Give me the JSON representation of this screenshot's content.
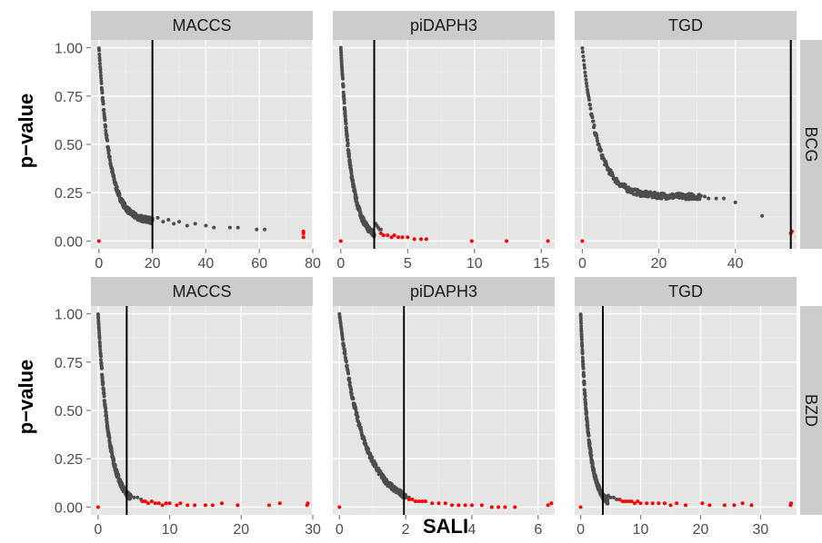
{
  "chart_data": {
    "type": "scatter",
    "xlabel": "SALI",
    "ylabel": "p−value",
    "columns": [
      "MACCS",
      "piDAPH3",
      "TGD"
    ],
    "rows": [
      "BCG",
      "BZD"
    ],
    "y_ticks": [
      "0.00",
      "0.25",
      "0.50",
      "0.75",
      "1.00"
    ],
    "ylim": [
      -0.04,
      1.04
    ],
    "grid": true,
    "colors": {
      "panel_bg": "#e5e5e5",
      "strip_bg": "#cccccc",
      "gridline": "#ffffff",
      "point": "#4d4d4d",
      "highlight": "#ff0000",
      "threshold": "#000000"
    },
    "panels": [
      {
        "row": "BCG",
        "column": "MACCS",
        "xlim": [
          -3,
          80
        ],
        "x_ticks": [
          0,
          20,
          40,
          60,
          80
        ],
        "threshold": 20,
        "decay": 4.0,
        "floor": 0.1,
        "x_max": 20,
        "sparse": [
          [
            20,
            0.11
          ],
          [
            22,
            0.12
          ],
          [
            24,
            0.1
          ],
          [
            26,
            0.11
          ],
          [
            28,
            0.09
          ],
          [
            30,
            0.1
          ],
          [
            33,
            0.08
          ],
          [
            36,
            0.09
          ],
          [
            40,
            0.08
          ],
          [
            43,
            0.07
          ],
          [
            49,
            0.07
          ],
          [
            52,
            0.07
          ],
          [
            59,
            0.06
          ],
          [
            62,
            0.06
          ]
        ],
        "red": [
          [
            0,
            0.0
          ],
          [
            76.5,
            0.02
          ],
          [
            76.5,
            0.04
          ],
          [
            76.5,
            0.05
          ]
        ]
      },
      {
        "row": "BCG",
        "column": "piDAPH3",
        "xlim": [
          -0.6,
          16
        ],
        "x_ticks": [
          0,
          5,
          10,
          15
        ],
        "threshold": 2.5,
        "decay": 0.75,
        "floor": 0.0,
        "x_max": 2.5,
        "sparse": [
          [
            2.6,
            0.09
          ],
          [
            2.7,
            0.08
          ],
          [
            2.8,
            0.07
          ],
          [
            2.9,
            0.06
          ],
          [
            3.0,
            0.06
          ]
        ],
        "red": [
          [
            0,
            0.0
          ],
          [
            3.0,
            0.04
          ],
          [
            3.2,
            0.03
          ],
          [
            3.5,
            0.03
          ],
          [
            3.8,
            0.02
          ],
          [
            4.0,
            0.03
          ],
          [
            4.3,
            0.02
          ],
          [
            4.6,
            0.02
          ],
          [
            5.0,
            0.02
          ],
          [
            5.5,
            0.01
          ],
          [
            6.0,
            0.01
          ],
          [
            6.4,
            0.01
          ],
          [
            9.8,
            0.0
          ],
          [
            12.4,
            0.0
          ],
          [
            15.5,
            0.0
          ]
        ]
      },
      {
        "row": "BCG",
        "column": "TGD",
        "xlim": [
          -2,
          56
        ],
        "x_ticks": [
          0,
          20,
          40
        ],
        "threshold": 54.5,
        "decay": 4.0,
        "floor": 0.23,
        "x_max": 31,
        "sparse": [
          [
            32,
            0.23
          ],
          [
            33,
            0.22
          ],
          [
            35,
            0.22
          ],
          [
            37,
            0.22
          ],
          [
            40,
            0.2
          ],
          [
            47,
            0.13
          ]
        ],
        "red": [
          [
            0,
            0.0
          ],
          [
            54.5,
            0.04
          ],
          [
            54.8,
            0.05
          ]
        ]
      },
      {
        "row": "BZD",
        "column": "MACCS",
        "xlim": [
          -1,
          30
        ],
        "x_ticks": [
          0,
          10,
          20,
          30
        ],
        "threshold": 4,
        "decay": 1.5,
        "floor": 0.0,
        "x_max": 4.5,
        "sparse": [
          [
            4.6,
            0.06
          ],
          [
            5.0,
            0.05
          ],
          [
            5.5,
            0.05
          ],
          [
            6.0,
            0.04
          ]
        ],
        "red": [
          [
            0,
            0.0
          ],
          [
            6.2,
            0.03
          ],
          [
            6.6,
            0.03
          ],
          [
            7.0,
            0.02
          ],
          [
            7.5,
            0.03
          ],
          [
            8.0,
            0.02
          ],
          [
            8.5,
            0.02
          ],
          [
            9.0,
            0.01
          ],
          [
            9.5,
            0.02
          ],
          [
            10.0,
            0.02
          ],
          [
            11.0,
            0.01
          ],
          [
            11.5,
            0.02
          ],
          [
            12.5,
            0.01
          ],
          [
            13.5,
            0.01
          ],
          [
            15.0,
            0.01
          ],
          [
            16.0,
            0.01
          ],
          [
            17.3,
            0.02
          ],
          [
            19.5,
            0.01
          ],
          [
            23.9,
            0.01
          ],
          [
            25.4,
            0.02
          ],
          [
            29.2,
            0.01
          ],
          [
            29.3,
            0.02
          ]
        ]
      },
      {
        "row": "BZD",
        "column": "piDAPH3",
        "xlim": [
          -0.2,
          6.5
        ],
        "x_ticks": [
          0,
          2,
          4,
          6
        ],
        "threshold": 1.95,
        "decay": 0.7,
        "floor": 0.0,
        "x_max": 2.0,
        "sparse": [
          [
            2.0,
            0.06
          ],
          [
            2.1,
            0.05
          ]
        ],
        "red": [
          [
            0,
            0.0
          ],
          [
            2.1,
            0.04
          ],
          [
            2.2,
            0.04
          ],
          [
            2.3,
            0.03
          ],
          [
            2.4,
            0.03
          ],
          [
            2.5,
            0.03
          ],
          [
            2.6,
            0.03
          ],
          [
            2.8,
            0.02
          ],
          [
            3.0,
            0.02
          ],
          [
            3.2,
            0.02
          ],
          [
            3.4,
            0.01
          ],
          [
            3.6,
            0.01
          ],
          [
            3.8,
            0.01
          ],
          [
            4.0,
            0.01
          ],
          [
            4.3,
            0.01
          ],
          [
            4.6,
            0.0
          ],
          [
            4.8,
            0.0
          ],
          [
            5.0,
            0.0
          ],
          [
            5.3,
            0.0
          ],
          [
            6.3,
            0.01
          ],
          [
            6.4,
            0.02
          ]
        ]
      },
      {
        "row": "BZD",
        "column": "TGD",
        "xlim": [
          -1,
          36
        ],
        "x_ticks": [
          0,
          10,
          20,
          30
        ],
        "threshold": 3.7,
        "decay": 1.3,
        "floor": 0.0,
        "x_max": 4.5,
        "sparse": [
          [
            4.6,
            0.06
          ],
          [
            5.0,
            0.05
          ],
          [
            5.5,
            0.05
          ],
          [
            6.0,
            0.04
          ]
        ],
        "red": [
          [
            0,
            0.0
          ],
          [
            6.5,
            0.04
          ],
          [
            7.0,
            0.03
          ],
          [
            7.5,
            0.03
          ],
          [
            8.0,
            0.03
          ],
          [
            8.5,
            0.03
          ],
          [
            9.0,
            0.02
          ],
          [
            9.5,
            0.03
          ],
          [
            10.0,
            0.02
          ],
          [
            11.0,
            0.02
          ],
          [
            12.0,
            0.02
          ],
          [
            13.0,
            0.02
          ],
          [
            14.0,
            0.02
          ],
          [
            15.0,
            0.01
          ],
          [
            16.0,
            0.02
          ],
          [
            17.5,
            0.01
          ],
          [
            20.3,
            0.02
          ],
          [
            21.5,
            0.01
          ],
          [
            24.0,
            0.01
          ],
          [
            25.6,
            0.01
          ],
          [
            27.0,
            0.02
          ],
          [
            28.5,
            0.01
          ],
          [
            35.0,
            0.01
          ],
          [
            35.1,
            0.02
          ]
        ]
      }
    ]
  }
}
